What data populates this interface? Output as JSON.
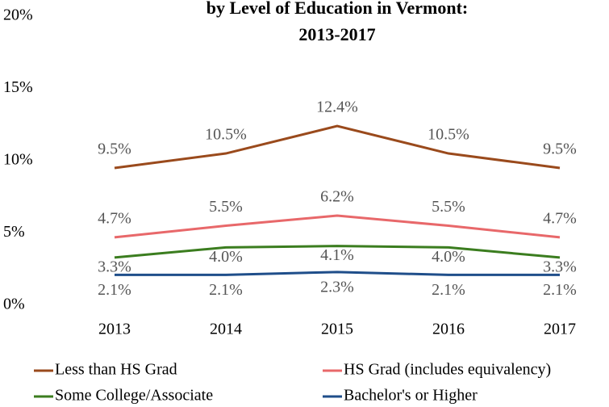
{
  "chart_data": {
    "type": "line",
    "title_lines": [
      "by Level of Education in Vermont:",
      "2013-2017"
    ],
    "categories": [
      "2013",
      "2014",
      "2015",
      "2016",
      "2017"
    ],
    "series": [
      {
        "name": "Less than HS Grad",
        "color": "#9a4a1c",
        "values": [
          9.5,
          10.5,
          12.4,
          10.5,
          9.5
        ],
        "value_labels": [
          "9.5%",
          "10.5%",
          "12.4%",
          "10.5%",
          "9.5%"
        ]
      },
      {
        "name": "HS Grad (includes equivalency)",
        "color": "#e8686a",
        "values": [
          4.7,
          5.5,
          6.2,
          5.5,
          4.7
        ],
        "value_labels": [
          "4.7%",
          "5.5%",
          "6.2%",
          "5.5%",
          "4.7%"
        ]
      },
      {
        "name": "Some College/Associate",
        "color": "#3b7d1f",
        "values": [
          3.3,
          4.0,
          4.1,
          4.0,
          3.3
        ],
        "value_labels": [
          "3.3%",
          "4.0%",
          "4.1%",
          "4.0%",
          "3.3%"
        ]
      },
      {
        "name": "Bachelor's or Higher",
        "color": "#1f4e8a",
        "values": [
          2.1,
          2.1,
          2.3,
          2.1,
          2.1
        ],
        "value_labels": [
          "2.1%",
          "2.1%",
          "2.3%",
          "2.1%",
          "2.1%"
        ]
      }
    ],
    "ylim": [
      0,
      20
    ],
    "yticks": [
      {
        "value": 0,
        "label": "0%"
      },
      {
        "value": 5,
        "label": "5%"
      },
      {
        "value": 10,
        "label": "10%"
      },
      {
        "value": 15,
        "label": "15%"
      },
      {
        "value": 20,
        "label": "20%"
      }
    ],
    "grid": false
  }
}
